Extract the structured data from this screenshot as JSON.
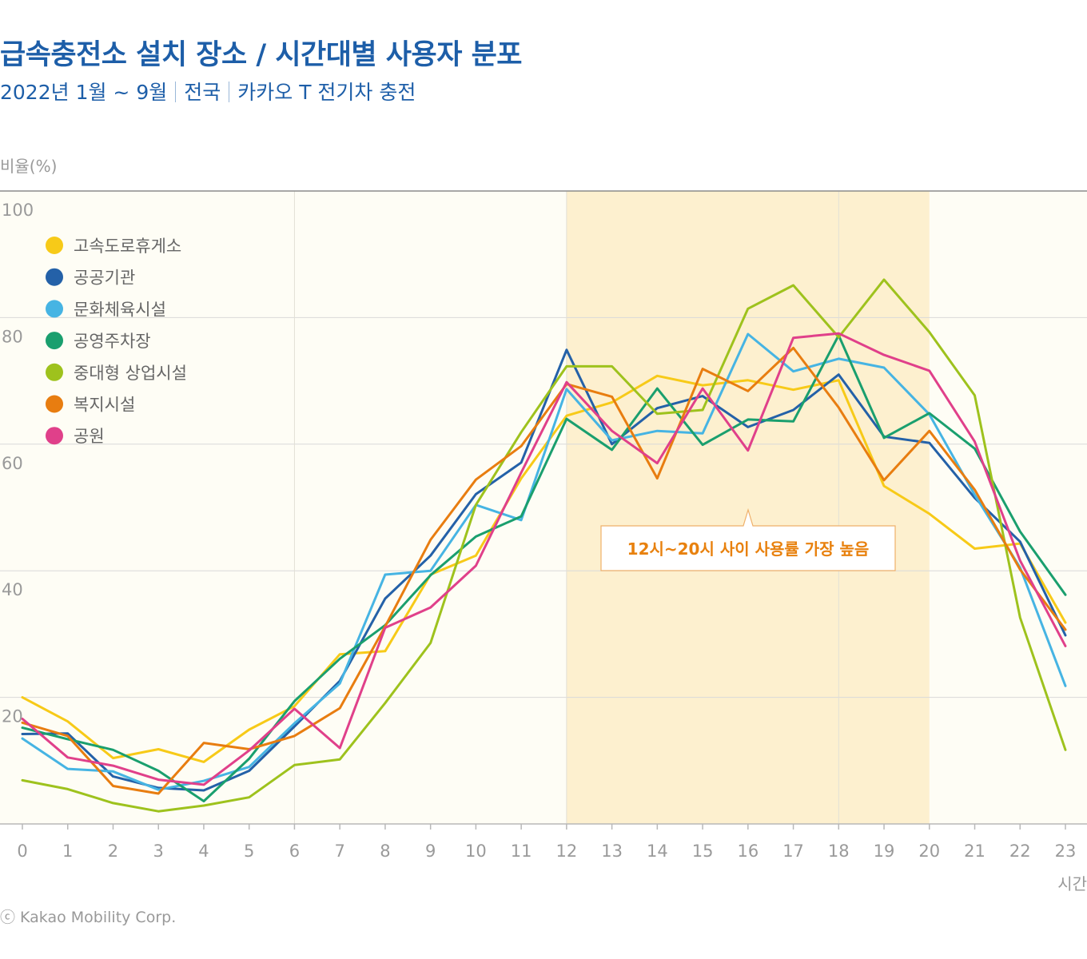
{
  "header": {
    "title": "급속충전소 설치 장소 / 시간대별 사용자 분포",
    "subtitle_parts": [
      "2022년 1월 ~ 9월",
      "전국",
      "카카오 T 전기차 충전"
    ]
  },
  "footer": {
    "copyright": "ⓒ Kakao Mobility Corp."
  },
  "chart_data": {
    "type": "line",
    "ylabel": "비율(%)",
    "xlabel": "시간",
    "ylim": [
      0,
      100
    ],
    "xlim": [
      0,
      23
    ],
    "yticks": [
      20,
      40,
      60,
      80,
      100
    ],
    "grid": true,
    "legend_position": "top-left",
    "x": [
      0,
      1,
      2,
      3,
      4,
      5,
      6,
      7,
      8,
      9,
      10,
      11,
      12,
      13,
      14,
      15,
      16,
      17,
      18,
      19,
      20,
      21,
      22,
      23
    ],
    "highlight": {
      "x_start": 12,
      "x_end": 20,
      "color": "#fdf0cf",
      "label": "12시~20시 사이 사용률 가장 높음"
    },
    "background_color": "#fefdf5",
    "series": [
      {
        "name": "고속도로휴게소",
        "color": "#f7ca18",
        "values": [
          20.0,
          16.2,
          10.4,
          11.8,
          9.8,
          14.9,
          18.6,
          26.8,
          27.3,
          39.4,
          42.4,
          54.6,
          64.5,
          66.6,
          70.8,
          69.3,
          70.1,
          68.6,
          70.1,
          53.4,
          49.0,
          43.5,
          44.3,
          31.8
        ]
      },
      {
        "name": "공공기관",
        "color": "#2461a8",
        "values": [
          14.2,
          14.3,
          7.5,
          5.7,
          5.3,
          8.4,
          15.4,
          22.6,
          35.6,
          42.4,
          52.1,
          57.1,
          74.9,
          60.0,
          65.7,
          67.6,
          62.7,
          65.4,
          71.0,
          61.2,
          60.2,
          51.5,
          44.6,
          29.8
        ]
      },
      {
        "name": "문화체육시설",
        "color": "#46b4e3",
        "values": [
          13.5,
          8.7,
          8.3,
          5.4,
          6.8,
          9.0,
          15.9,
          22.2,
          39.4,
          40.0,
          50.4,
          48.0,
          68.7,
          60.6,
          62.1,
          61.7,
          77.4,
          71.5,
          73.5,
          72.1,
          64.7,
          52.0,
          40.5,
          21.8
        ]
      },
      {
        "name": "공영주차장",
        "color": "#1a9f6e",
        "values": [
          15.2,
          13.4,
          11.7,
          8.4,
          3.6,
          10.3,
          19.4,
          26.1,
          31.4,
          39.3,
          45.4,
          48.6,
          64.0,
          59.1,
          68.8,
          59.9,
          63.9,
          63.6,
          77.2,
          61.0,
          64.9,
          59.3,
          46.2,
          36.2
        ]
      },
      {
        "name": "중대형 상업시설",
        "color": "#9ec21d",
        "values": [
          6.9,
          5.5,
          3.3,
          2.0,
          2.9,
          4.2,
          9.3,
          10.2,
          19.1,
          28.6,
          50.4,
          61.9,
          72.3,
          72.3,
          64.8,
          65.4,
          81.4,
          85.1,
          76.9,
          86.0,
          77.7,
          67.7,
          32.6,
          11.7
        ]
      },
      {
        "name": "복지시설",
        "color": "#e87d10",
        "values": [
          16.0,
          13.9,
          6.0,
          4.8,
          12.8,
          11.8,
          13.9,
          18.3,
          31.2,
          44.9,
          54.4,
          59.7,
          69.5,
          67.5,
          54.6,
          71.9,
          68.4,
          75.2,
          65.8,
          54.3,
          62.1,
          52.8,
          40.2,
          30.7
        ]
      },
      {
        "name": "공원",
        "color": "#e0408a",
        "values": [
          16.6,
          10.5,
          9.2,
          7.0,
          6.2,
          11.6,
          18.2,
          12.0,
          31.0,
          34.2,
          40.8,
          55.5,
          69.8,
          62.1,
          57.0,
          68.8,
          59.0,
          76.8,
          77.5,
          74.1,
          71.6,
          60.4,
          41.6,
          28.1
        ]
      }
    ]
  }
}
